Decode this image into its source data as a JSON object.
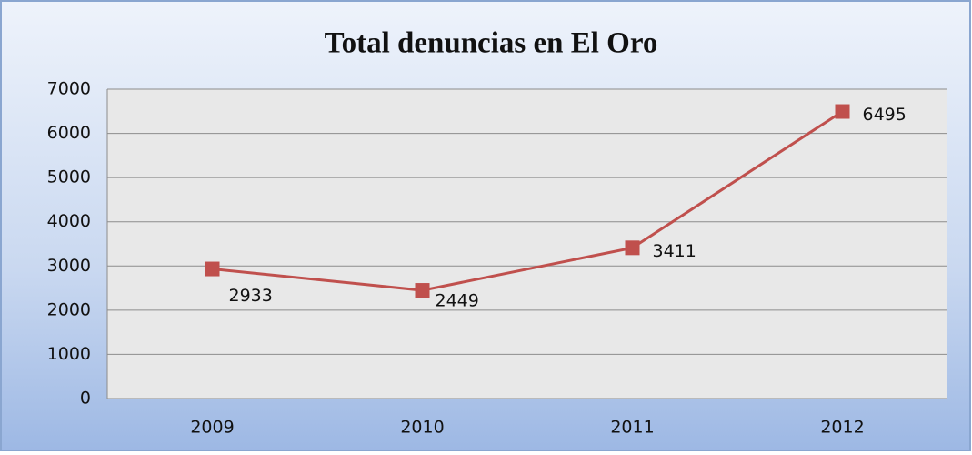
{
  "chart_data": {
    "type": "line",
    "title": "Total denuncias en El Oro",
    "categories": [
      "2009",
      "2010",
      "2011",
      "2012"
    ],
    "series": [
      {
        "name": "Total denuncias",
        "color": "#c0504d",
        "values": [
          2933,
          2449,
          3411,
          6495
        ]
      }
    ],
    "ylim": [
      0,
      7000
    ],
    "yticks": [
      0,
      1000,
      2000,
      3000,
      4000,
      5000,
      6000,
      7000
    ],
    "grid": true
  }
}
